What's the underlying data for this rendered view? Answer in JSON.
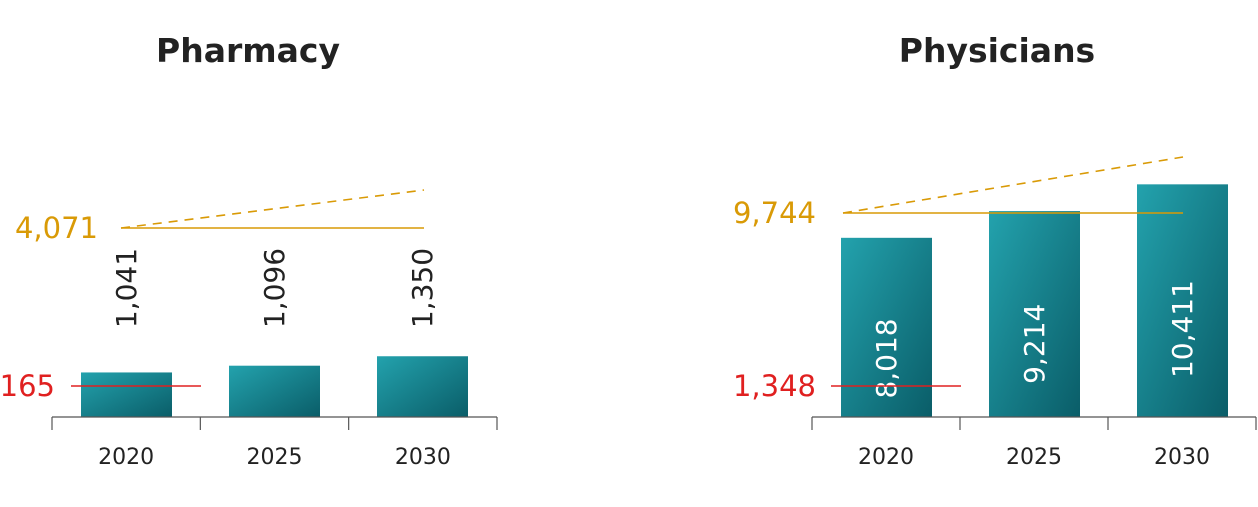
{
  "colors": {
    "bar_light": "#23a2ad",
    "bar_dark": "#0a5d68",
    "gold": "#d99a06",
    "red": "#e02020",
    "axis": "#555555",
    "label_dark": "#222222",
    "label_light": "#ffffff"
  },
  "chart_data": [
    {
      "type": "bar",
      "title": "Pharmacy",
      "categories": [
        "2020",
        "2025",
        "2030"
      ],
      "values": [
        1041,
        1096,
        1350
      ],
      "value_labels": [
        "1,041",
        "1,096",
        "1,350"
      ],
      "bar_heights": [
        165,
        190,
        225
      ],
      "reference_lines": [
        {
          "value": 4071,
          "label": "4,071",
          "color": "gold",
          "style": "solid",
          "trend_end": 4400
        },
        {
          "value": 165,
          "label": "165",
          "color": "red",
          "style": "solid"
        }
      ],
      "ylim": [
        0,
        4600
      ],
      "label_position": "above"
    },
    {
      "type": "bar",
      "title": "Physicians",
      "categories": [
        "2020",
        "2025",
        "2030"
      ],
      "values": [
        8018,
        9214,
        10411
      ],
      "value_labels": [
        "8,018",
        "9,214",
        "10,411"
      ],
      "reference_lines": [
        {
          "value": 9744,
          "label": "9,744",
          "color": "gold",
          "style": "solid",
          "trend_end": 11000
        },
        {
          "value": 1348,
          "label": "1,348",
          "color": "red",
          "style": "solid"
        }
      ],
      "ylim": [
        0,
        11500
      ],
      "label_position": "inside"
    }
  ]
}
